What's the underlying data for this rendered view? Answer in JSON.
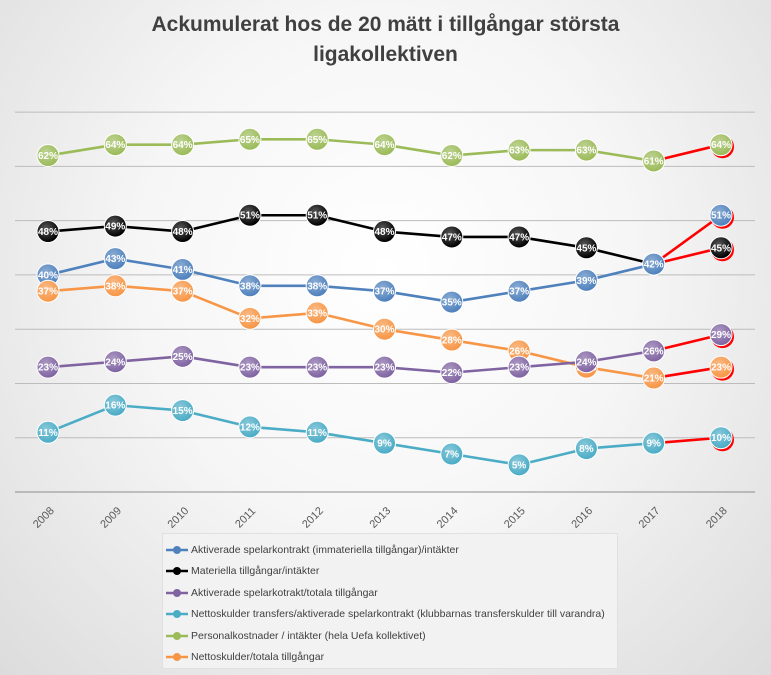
{
  "chart_data": {
    "type": "line",
    "title_lines": [
      "Ackumulerat hos de 20 mätt i tillgångar största",
      "ligakollektiven"
    ],
    "categories": [
      "2008",
      "2009",
      "2010",
      "2011",
      "2012",
      "2013",
      "2014",
      "2015",
      "2016",
      "2017",
      "2018"
    ],
    "ylim": [
      0,
      0.75
    ],
    "grid": true,
    "legend_position": "bottom",
    "highlight_last_segment_color": "#ff0000",
    "series": [
      {
        "name": "Personalkostnader / intäkter (hela Uefa kollektivet)",
        "color": "#9bbb59",
        "values": [
          0.62,
          0.64,
          0.64,
          0.65,
          0.65,
          0.64,
          0.62,
          0.63,
          0.63,
          0.61,
          0.64
        ],
        "labels": [
          "62%",
          "64%",
          "64%",
          "65%",
          "65%",
          "64%",
          "62%",
          "63%",
          "63%",
          "61%",
          "64%"
        ]
      },
      {
        "name": "Materiella tillgångar/intäkter",
        "color": "#000000",
        "values": [
          0.48,
          0.49,
          0.48,
          0.51,
          0.51,
          0.48,
          0.47,
          0.47,
          0.45,
          0.42,
          0.45
        ],
        "labels": [
          "48%",
          "49%",
          "48%",
          "51%",
          "51%",
          "48%",
          "47%",
          "47%",
          "45%",
          "42%",
          "45%"
        ]
      },
      {
        "name": "Aktiverade spelarkontrakt (immateriella tillgångar)/intäkter",
        "color": "#4f81bd",
        "values": [
          0.4,
          0.43,
          0.41,
          0.38,
          0.38,
          0.37,
          0.35,
          0.37,
          0.39,
          0.42,
          0.51
        ],
        "labels": [
          "40%",
          "43%",
          "41%",
          "38%",
          "38%",
          "37%",
          "35%",
          "37%",
          "39%",
          "42%",
          "51%"
        ]
      },
      {
        "name": "Nettoskulder/totala tillgångar",
        "color": "#f79646",
        "values": [
          0.37,
          0.38,
          0.37,
          0.32,
          0.33,
          0.3,
          0.28,
          0.26,
          0.23,
          0.21,
          0.23
        ],
        "labels": [
          "37%",
          "38%",
          "37%",
          "32%",
          "33%",
          "30%",
          "28%",
          "26%",
          "23%",
          "21%",
          "23%"
        ]
      },
      {
        "name": "Aktiverade spelarkotrakt/totala tillgångar",
        "color": "#8064a2",
        "values": [
          0.23,
          0.24,
          0.25,
          0.23,
          0.23,
          0.23,
          0.22,
          0.23,
          0.24,
          0.26,
          0.29
        ],
        "labels": [
          "23%",
          "24%",
          "25%",
          "23%",
          "23%",
          "23%",
          "22%",
          "23%",
          "24%",
          "26%",
          "29%"
        ]
      },
      {
        "name": "Nettoskulder transfers/aktiverade spelarkontrakt (klubbarnas transferskulder till varandra)",
        "color": "#4bacc6",
        "values": [
          0.11,
          0.16,
          0.15,
          0.12,
          0.11,
          0.09,
          0.07,
          0.05,
          0.08,
          0.09,
          0.1
        ],
        "labels": [
          "11%",
          "16%",
          "15%",
          "12%",
          "11%",
          "9%",
          "7%",
          "5%",
          "8%",
          "9%",
          "10%"
        ]
      }
    ],
    "legend_order": [
      "Aktiverade spelarkontrakt (immateriella tillgångar)/intäkter",
      "Materiella tillgångar/intäkter",
      "Aktiverade spelarkotrakt/totala tillgångar",
      "Nettoskulder transfers/aktiverade spelarkontrakt (klubbarnas transferskulder till varandra)",
      "Personalkostnader / intäkter (hela Uefa kollektivet)",
      "Nettoskulder/totala tillgångar"
    ]
  }
}
